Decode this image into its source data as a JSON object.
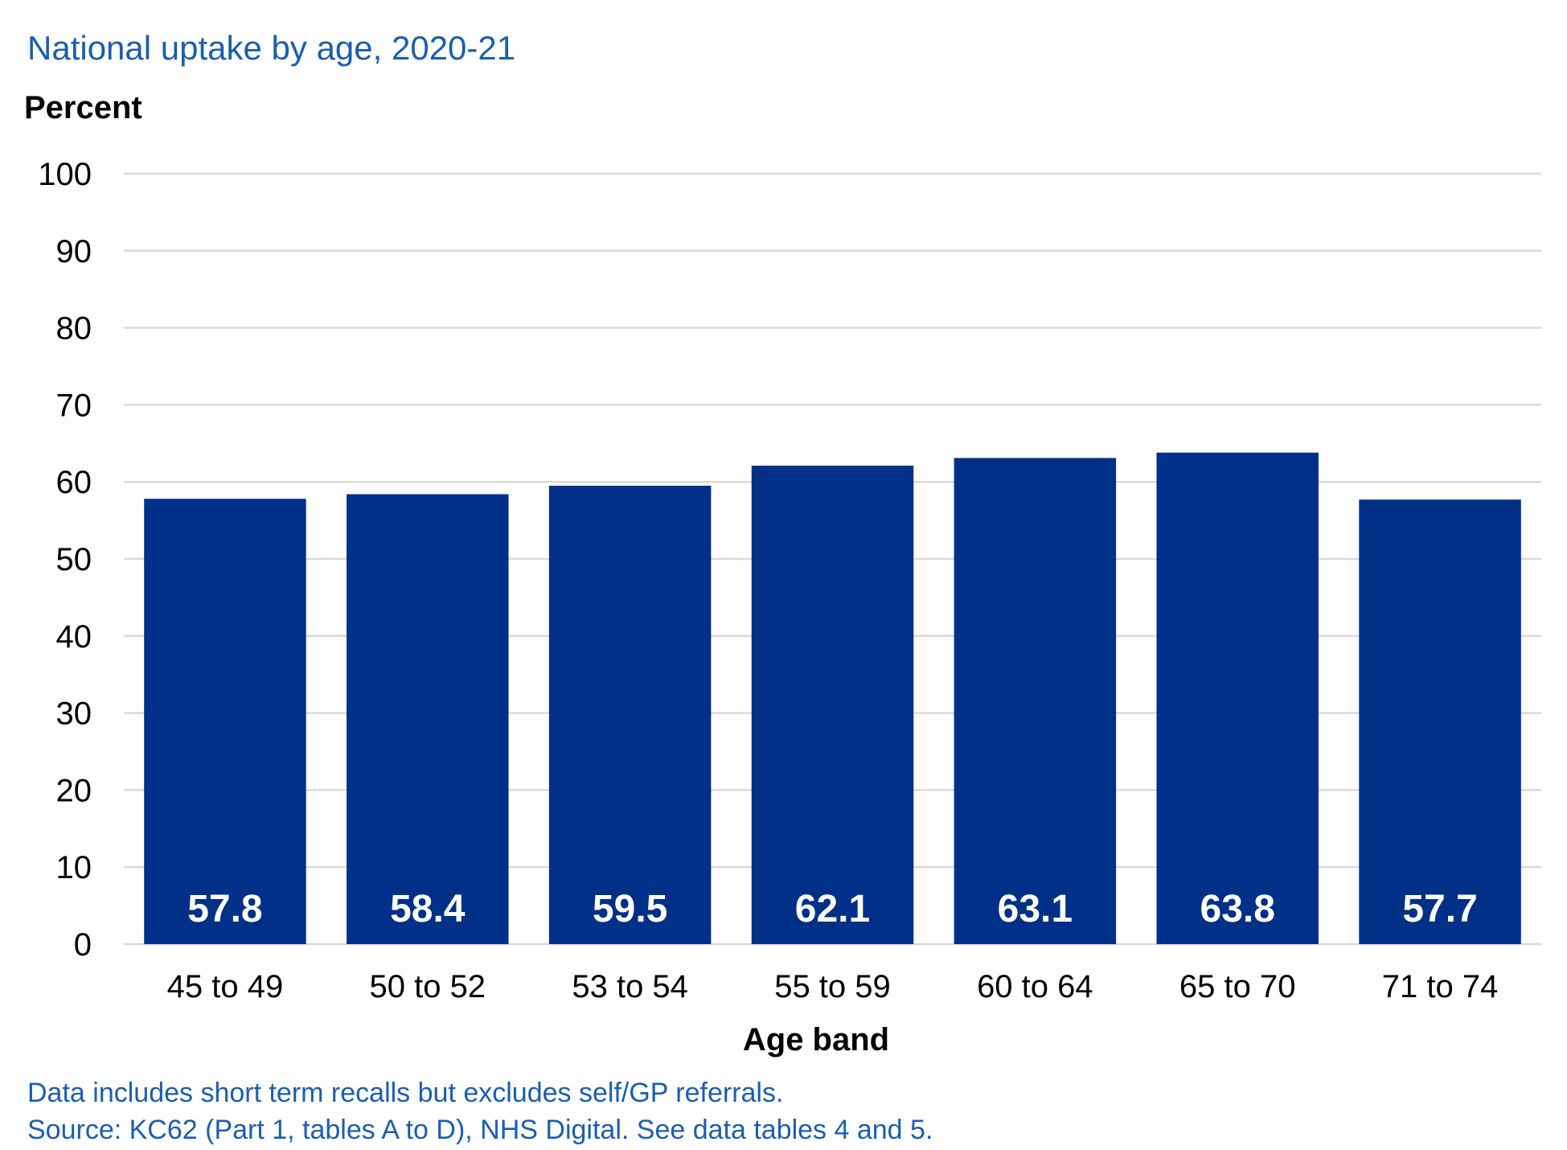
{
  "title": "National uptake by age, 2020-21",
  "notes": [
    "Data includes short term recalls but excludes self/GP referrals.",
    "Source: KC62 (Part 1, tables A to D), NHS Digital. See data tables 4 and 5."
  ],
  "colors": {
    "bar": "#003087",
    "title": "#1a5eb0",
    "grid": "#d9d9d9"
  },
  "chart_data": {
    "type": "bar",
    "title": "National uptake by age, 2020-21",
    "xlabel": "Age band",
    "ylabel": "Percent",
    "categories": [
      "45 to 49",
      "50 to 52",
      "53 to 54",
      "55 to 59",
      "60 to 64",
      "65 to 70",
      "71 to 74"
    ],
    "values": [
      57.8,
      58.4,
      59.5,
      62.1,
      63.1,
      63.8,
      57.7
    ],
    "value_labels": [
      "57.8",
      "58.4",
      "59.5",
      "62.1",
      "63.1",
      "63.8",
      "57.7"
    ],
    "ylim": [
      0,
      100
    ],
    "yticks": [
      "0",
      "10",
      "20",
      "30",
      "40",
      "50",
      "60",
      "70",
      "80",
      "90",
      "100"
    ],
    "grid": true,
    "legend": "none"
  }
}
